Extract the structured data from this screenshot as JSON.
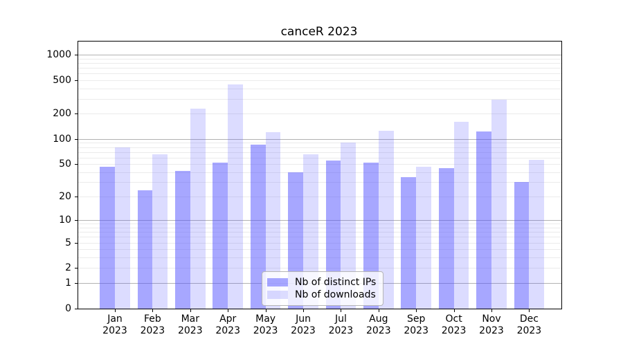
{
  "figure": {
    "title": "canceR 2023"
  },
  "colors": {
    "ips_bar": "rgba(80,80,255,0.5)",
    "downloads_bar": "rgba(80,80,255,0.2)",
    "grid_major": "#b2b2b2",
    "grid_minor": "#ebebeb",
    "axis": "#000000",
    "legend_border": "#b5b5b5"
  },
  "legend": {
    "items": [
      {
        "label": "Nb of distinct IPs",
        "color": "rgba(80,80,255,0.5)"
      },
      {
        "label": "Nb of downloads",
        "color": "rgba(80,80,255,0.2)"
      }
    ]
  },
  "y_axis": {
    "tick_values": [
      0,
      1,
      2,
      5,
      10,
      20,
      50,
      100,
      200,
      500,
      1000
    ],
    "tick_labels": [
      "0",
      "1",
      "2",
      "5",
      "10",
      "20",
      "50",
      "100",
      "200",
      "500",
      "1000"
    ],
    "minor_grid_values": [
      2,
      3,
      4,
      5,
      6,
      7,
      8,
      9,
      20,
      30,
      40,
      50,
      60,
      70,
      80,
      90,
      200,
      300,
      400,
      500,
      600,
      700,
      800,
      900
    ],
    "major_grid_values": [
      1,
      10,
      100,
      1000
    ]
  },
  "x_axis": {
    "labels": [
      {
        "month": "Jan",
        "year": "2023"
      },
      {
        "month": "Feb",
        "year": "2023"
      },
      {
        "month": "Mar",
        "year": "2023"
      },
      {
        "month": "Apr",
        "year": "2023"
      },
      {
        "month": "May",
        "year": "2023"
      },
      {
        "month": "Jun",
        "year": "2023"
      },
      {
        "month": "Jul",
        "year": "2023"
      },
      {
        "month": "Aug",
        "year": "2023"
      },
      {
        "month": "Sep",
        "year": "2023"
      },
      {
        "month": "Oct",
        "year": "2023"
      },
      {
        "month": "Nov",
        "year": "2023"
      },
      {
        "month": "Dec",
        "year": "2023"
      }
    ]
  },
  "chart_data": {
    "type": "bar",
    "title": "canceR 2023",
    "categories": [
      "Jan 2023",
      "Feb 2023",
      "Mar 2023",
      "Apr 2023",
      "May 2023",
      "Jun 2023",
      "Jul 2023",
      "Aug 2023",
      "Sep 2023",
      "Oct 2023",
      "Nov 2023",
      "Dec 2023"
    ],
    "series": [
      {
        "name": "Nb of distinct IPs",
        "values": [
          46,
          24,
          41,
          52,
          86,
          40,
          55,
          52,
          35,
          45,
          123,
          30
        ]
      },
      {
        "name": "Nb of downloads",
        "values": [
          80,
          66,
          230,
          450,
          120,
          65,
          90,
          126,
          46,
          162,
          295,
          56
        ]
      }
    ],
    "xlabel": "",
    "ylabel": "",
    "yscale": "log1p",
    "yticks": [
      0,
      1,
      2,
      5,
      10,
      20,
      50,
      100,
      200,
      500,
      1000
    ],
    "ylim": [
      0,
      1430
    ],
    "grid": true,
    "legend_position": "lower center"
  }
}
